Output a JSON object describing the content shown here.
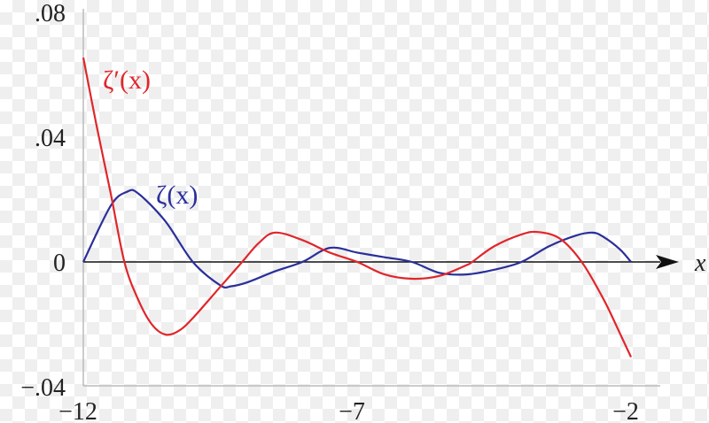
{
  "chart_data": {
    "type": "line",
    "title": "",
    "xlabel": "x",
    "ylabel": "",
    "xlim": [
      -12,
      -2
    ],
    "ylim": [
      -0.04,
      0.08
    ],
    "x_ticks": [
      {
        "value": -12,
        "label": "−12"
      },
      {
        "value": -7,
        "label": "−7"
      },
      {
        "value": -2,
        "label": "−2"
      }
    ],
    "y_ticks": [
      {
        "value": 0.08,
        "label": ".08"
      },
      {
        "value": 0.04,
        "label": ".04"
      },
      {
        "value": 0,
        "label": "0"
      },
      {
        "value": -0.04,
        "label": "−.04"
      }
    ],
    "grid": false,
    "series": [
      {
        "name": "ζ(x)",
        "color": "#2a2f9a",
        "points": [
          [
            -12,
            0
          ],
          [
            -11.5,
            0.018
          ],
          [
            -11.2,
            0.0225
          ],
          [
            -11,
            0.022
          ],
          [
            -10.5,
            0.013
          ],
          [
            -10,
            0
          ],
          [
            -9.5,
            -0.0075
          ],
          [
            -9.3,
            -0.0078
          ],
          [
            -9,
            -0.0065
          ],
          [
            -8.5,
            -0.003
          ],
          [
            -8,
            0
          ],
          [
            -7.5,
            0.0045
          ],
          [
            -7,
            0.003
          ],
          [
            -6.5,
            0.0015
          ],
          [
            -6,
            0
          ],
          [
            -5.5,
            -0.0035
          ],
          [
            -5,
            -0.004
          ],
          [
            -4.5,
            -0.0025
          ],
          [
            -4,
            0
          ],
          [
            -3.5,
            0.005
          ],
          [
            -3,
            0.0085
          ],
          [
            -2.7,
            0.0094
          ],
          [
            -2.5,
            0.008
          ],
          [
            -2.2,
            0.004
          ],
          [
            -2,
            0
          ]
        ]
      },
      {
        "name": "ζ′(x)",
        "color": "#e0262b",
        "points": [
          [
            -12,
            0.0655
          ],
          [
            -11.75,
            0.043
          ],
          [
            -11.5,
            0.022
          ],
          [
            -11.25,
            0
          ],
          [
            -11,
            -0.012
          ],
          [
            -10.75,
            -0.02
          ],
          [
            -10.5,
            -0.0233
          ],
          [
            -10.25,
            -0.022
          ],
          [
            -10,
            -0.018
          ],
          [
            -9.5,
            -0.008
          ],
          [
            -9.1,
            0
          ],
          [
            -8.8,
            0.006
          ],
          [
            -8.5,
            0.0094
          ],
          [
            -8,
            0.007
          ],
          [
            -7.5,
            0.003
          ],
          [
            -7,
            0
          ],
          [
            -6.5,
            -0.004
          ],
          [
            -6,
            -0.0054
          ],
          [
            -5.5,
            -0.0045
          ],
          [
            -5,
            -0.001
          ],
          [
            -4.9,
            0
          ],
          [
            -4.5,
            0.005
          ],
          [
            -4,
            0.0088
          ],
          [
            -3.7,
            0.0096
          ],
          [
            -3.3,
            0.0075
          ],
          [
            -2.9,
            0
          ],
          [
            -2.5,
            -0.012
          ],
          [
            -2.2,
            -0.023
          ],
          [
            -2,
            -0.0305
          ]
        ]
      }
    ],
    "annotations": [
      {
        "text": "ζ′(x)",
        "series": 1
      },
      {
        "text": "ζ(x)",
        "series": 0
      }
    ]
  }
}
